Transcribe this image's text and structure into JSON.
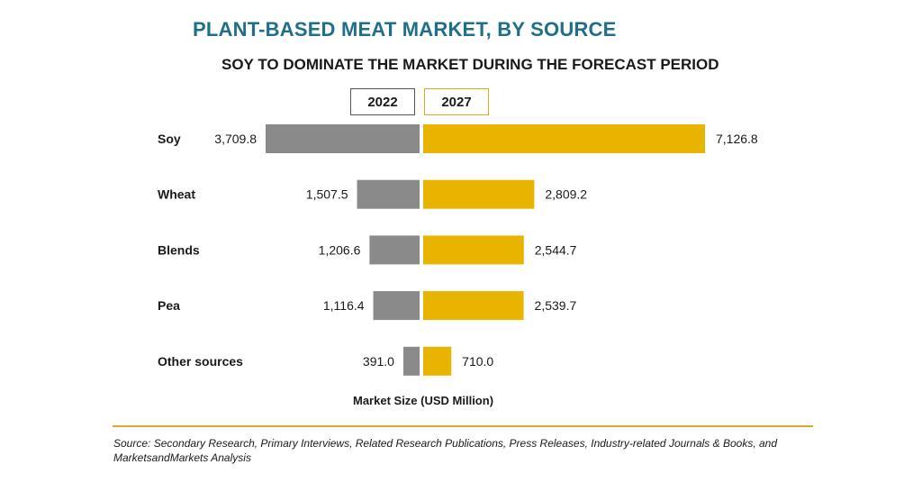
{
  "chart_data": {
    "type": "bar",
    "title": "PLANT-BASED MEAT MARKET, BY SOURCE",
    "subtitle": "SOY TO DOMINATE THE MARKET DURING THE FORECAST PERIOD",
    "xlabel": "Market Size (USD Million)",
    "categories": [
      "Soy",
      "Wheat",
      "Blends",
      "Pea",
      "Other sources"
    ],
    "series": [
      {
        "name": "2022",
        "values": [
          3709.8,
          1507.5,
          1206.6,
          1116.4,
          391.0
        ],
        "labels": [
          "3,709.8",
          "1,507.5",
          "1,206.6",
          "1,116.4",
          "391.0"
        ],
        "color": "#8a8a8a"
      },
      {
        "name": "2027",
        "values": [
          7126.8,
          2809.2,
          2544.7,
          2539.7,
          710.0
        ],
        "labels": [
          "7,126.8",
          "2,809.2",
          "2,544.7",
          "2,539.7",
          "710.0"
        ],
        "color": "#e8b400"
      }
    ],
    "legend_position": "top-center",
    "grid": false
  },
  "source": "Source: Secondary Research, Primary Interviews, Related Research Publications, Press Releases, Industry-related Journals & Books, and MarketsandMarkets Analysis"
}
